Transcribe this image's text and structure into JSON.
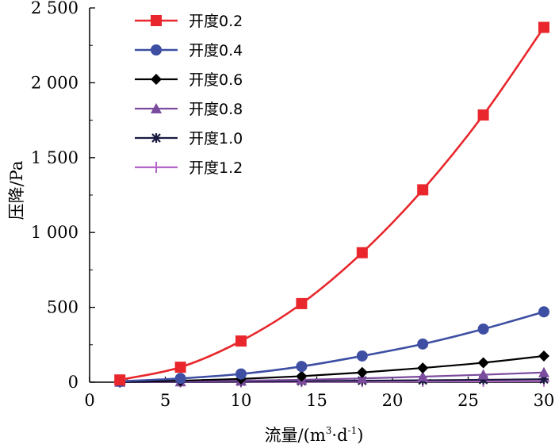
{
  "chart_data": {
    "type": "line",
    "xlabel_main": "流量/(m",
    "xlabel_sup1": "3",
    "xlabel_mid": "·d",
    "xlabel_sup2": "-1",
    "xlabel_end": ")",
    "ylabel": "压降/Pa",
    "xlim": [
      0,
      30
    ],
    "ylim": [
      0,
      2500
    ],
    "xticks": [
      0,
      5,
      10,
      15,
      20,
      25,
      30
    ],
    "xtick_labels": [
      "0",
      "5",
      "10",
      "15",
      "20",
      "25",
      "30"
    ],
    "yticks": [
      0,
      500,
      1000,
      1500,
      2000,
      2500
    ],
    "ytick_labels": [
      "0",
      "500",
      "1 000",
      "1 500",
      "2 000",
      "2 500"
    ],
    "grid": false,
    "legend_position": "top-left",
    "x": [
      2,
      6,
      10,
      14,
      18,
      22,
      26,
      30
    ],
    "series": [
      {
        "name": "开度0.2",
        "color": "#e8262b",
        "marker": "square",
        "values": [
          15,
          100,
          275,
          525,
          865,
          1285,
          1785,
          2370
        ]
      },
      {
        "name": "开度0.4",
        "color": "#3d4ea3",
        "marker": "circle",
        "values": [
          5,
          25,
          55,
          105,
          175,
          255,
          355,
          470
        ]
      },
      {
        "name": "开度0.6",
        "color": "#000000",
        "marker": "diamond",
        "values": [
          2,
          10,
          22,
          40,
          65,
          95,
          130,
          175
        ]
      },
      {
        "name": "开度0.8",
        "color": "#7b4b9e",
        "marker": "triangle",
        "values": [
          1,
          4,
          10,
          16,
          25,
          37,
          50,
          65
        ]
      },
      {
        "name": "开度1.0",
        "color": "#1a1a40",
        "marker": "star",
        "values": [
          0.5,
          2,
          4,
          7,
          10,
          13,
          16,
          20
        ]
      },
      {
        "name": "开度1.2",
        "color": "#b565c8",
        "marker": "plus",
        "values": [
          0.3,
          1,
          2,
          3,
          4,
          5,
          6,
          7
        ]
      }
    ]
  }
}
